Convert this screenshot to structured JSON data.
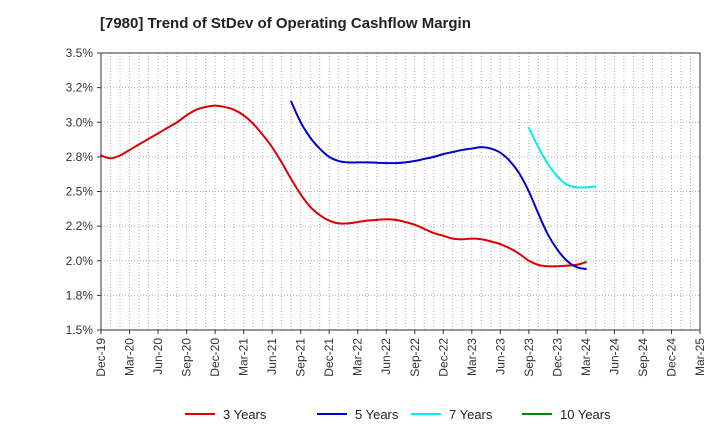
{
  "chart_data": {
    "type": "line",
    "title": "[7980]  Trend of StDev of Operating Cashflow Margin",
    "xlabel": "",
    "ylabel": "",
    "ylim": [
      1.5,
      3.5
    ],
    "y_ticks": [
      "3.5%",
      "3.2%",
      "3.0%",
      "2.8%",
      "2.5%",
      "2.2%",
      "2.0%",
      "1.8%",
      "1.5%"
    ],
    "x_ticks": [
      "Dec-19",
      "Mar-20",
      "Jun-20",
      "Sep-20",
      "Dec-20",
      "Mar-21",
      "Jun-21",
      "Sep-21",
      "Dec-21",
      "Mar-22",
      "Jun-22",
      "Sep-22",
      "Dec-22",
      "Mar-23",
      "Jun-23",
      "Sep-23",
      "Dec-23",
      "Mar-24",
      "Jun-24",
      "Sep-24",
      "Dec-24",
      "Mar-25"
    ],
    "x_range": [
      "2019-12",
      "2025-03"
    ],
    "grid": true,
    "legend_position": "bottom",
    "series": [
      {
        "name": "3 Years",
        "color": "#dd0000",
        "points": [
          [
            "2019-12",
            2.76
          ],
          [
            "2020-01",
            2.74
          ],
          [
            "2020-02",
            2.76
          ],
          [
            "2020-03",
            2.8
          ],
          [
            "2020-04",
            2.84
          ],
          [
            "2020-05",
            2.88
          ],
          [
            "2020-06",
            2.92
          ],
          [
            "2020-07",
            2.96
          ],
          [
            "2020-08",
            3.0
          ],
          [
            "2020-09",
            3.05
          ],
          [
            "2020-10",
            3.09
          ],
          [
            "2020-11",
            3.11
          ],
          [
            "2020-12",
            3.12
          ],
          [
            "2021-01",
            3.11
          ],
          [
            "2021-02",
            3.09
          ],
          [
            "2021-03",
            3.05
          ],
          [
            "2021-04",
            2.99
          ],
          [
            "2021-05",
            2.91
          ],
          [
            "2021-06",
            2.82
          ],
          [
            "2021-07",
            2.71
          ],
          [
            "2021-08",
            2.59
          ],
          [
            "2021-09",
            2.48
          ],
          [
            "2021-10",
            2.39
          ],
          [
            "2021-11",
            2.33
          ],
          [
            "2021-12",
            2.29
          ],
          [
            "2022-01",
            2.27
          ],
          [
            "2022-02",
            2.27
          ],
          [
            "2022-03",
            2.28
          ],
          [
            "2022-04",
            2.29
          ],
          [
            "2022-05",
            2.295
          ],
          [
            "2022-06",
            2.3
          ],
          [
            "2022-07",
            2.295
          ],
          [
            "2022-08",
            2.28
          ],
          [
            "2022-09",
            2.26
          ],
          [
            "2022-10",
            2.23
          ],
          [
            "2022-11",
            2.2
          ],
          [
            "2022-12",
            2.18
          ],
          [
            "2023-01",
            2.16
          ],
          [
            "2023-02",
            2.155
          ],
          [
            "2023-03",
            2.16
          ],
          [
            "2023-04",
            2.155
          ],
          [
            "2023-05",
            2.14
          ],
          [
            "2023-06",
            2.12
          ],
          [
            "2023-07",
            2.09
          ],
          [
            "2023-08",
            2.05
          ],
          [
            "2023-09",
            2.0
          ],
          [
            "2023-10",
            1.97
          ],
          [
            "2023-11",
            1.96
          ],
          [
            "2023-12",
            1.96
          ],
          [
            "2024-01",
            1.965
          ],
          [
            "2024-02",
            1.97
          ],
          [
            "2024-03",
            1.99
          ]
        ]
      },
      {
        "name": "5 Years",
        "color": "#0000cc",
        "points": [
          [
            "2021-08",
            3.15
          ],
          [
            "2021-09",
            3.0
          ],
          [
            "2021-10",
            2.89
          ],
          [
            "2021-11",
            2.81
          ],
          [
            "2021-12",
            2.75
          ],
          [
            "2022-01",
            2.72
          ],
          [
            "2022-02",
            2.71
          ],
          [
            "2022-03",
            2.71
          ],
          [
            "2022-04",
            2.71
          ],
          [
            "2022-05",
            2.708
          ],
          [
            "2022-06",
            2.705
          ],
          [
            "2022-07",
            2.705
          ],
          [
            "2022-08",
            2.71
          ],
          [
            "2022-09",
            2.72
          ],
          [
            "2022-10",
            2.735
          ],
          [
            "2022-11",
            2.75
          ],
          [
            "2022-12",
            2.77
          ],
          [
            "2023-01",
            2.785
          ],
          [
            "2023-02",
            2.8
          ],
          [
            "2023-03",
            2.81
          ],
          [
            "2023-04",
            2.82
          ],
          [
            "2023-05",
            2.81
          ],
          [
            "2023-06",
            2.78
          ],
          [
            "2023-07",
            2.72
          ],
          [
            "2023-08",
            2.63
          ],
          [
            "2023-09",
            2.5
          ],
          [
            "2023-10",
            2.34
          ],
          [
            "2023-11",
            2.19
          ],
          [
            "2023-12",
            2.08
          ],
          [
            "2024-01",
            2.0
          ],
          [
            "2024-02",
            1.955
          ],
          [
            "2024-03",
            1.94
          ]
        ]
      },
      {
        "name": "7 Years",
        "color": "#00eeee",
        "points": [
          [
            "2023-09",
            2.96
          ],
          [
            "2023-10",
            2.82
          ],
          [
            "2023-11",
            2.7
          ],
          [
            "2023-12",
            2.61
          ],
          [
            "2024-01",
            2.55
          ],
          [
            "2024-02",
            2.53
          ],
          [
            "2024-03",
            2.53
          ],
          [
            "2024-04",
            2.535
          ]
        ]
      },
      {
        "name": "10 Years",
        "color": "#008800",
        "points": []
      }
    ]
  }
}
